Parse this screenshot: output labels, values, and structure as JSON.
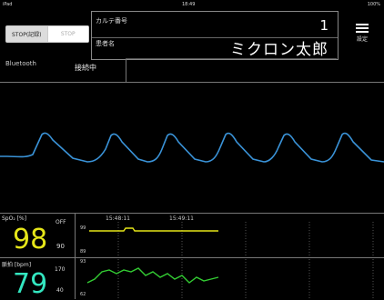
{
  "status": {
    "left": "iPad",
    "center": "18:49",
    "right": "100%"
  },
  "mode": {
    "left": "STOP(記録)",
    "right": "STOP"
  },
  "connection": {
    "bluetooth_label": "Bluetooth",
    "status_text": "接続中"
  },
  "patient": {
    "chart_no_label": "カルテ番号",
    "chart_no_value": "1",
    "name_label": "患者名",
    "name_value": "ミクロン太郎"
  },
  "settings_label": "設定",
  "spo2": {
    "label": "SpO₂ [%]",
    "value": "98",
    "alarm_state": "OFF",
    "limit": "90"
  },
  "pulse": {
    "label": "脈拍 [bpm]",
    "value": "79",
    "upper": "170",
    "lower": "40"
  },
  "trend_spo2": {
    "times": [
      "15:48:11",
      "15:49:11"
    ],
    "y_top": "99",
    "y_bottom": "89"
  },
  "trend_pulse": {
    "y_top": "93",
    "y_bottom": "62"
  },
  "colors": {
    "wave": "#3a93d8",
    "spo2": "#e6e619",
    "pulse": "#33cc33"
  }
}
